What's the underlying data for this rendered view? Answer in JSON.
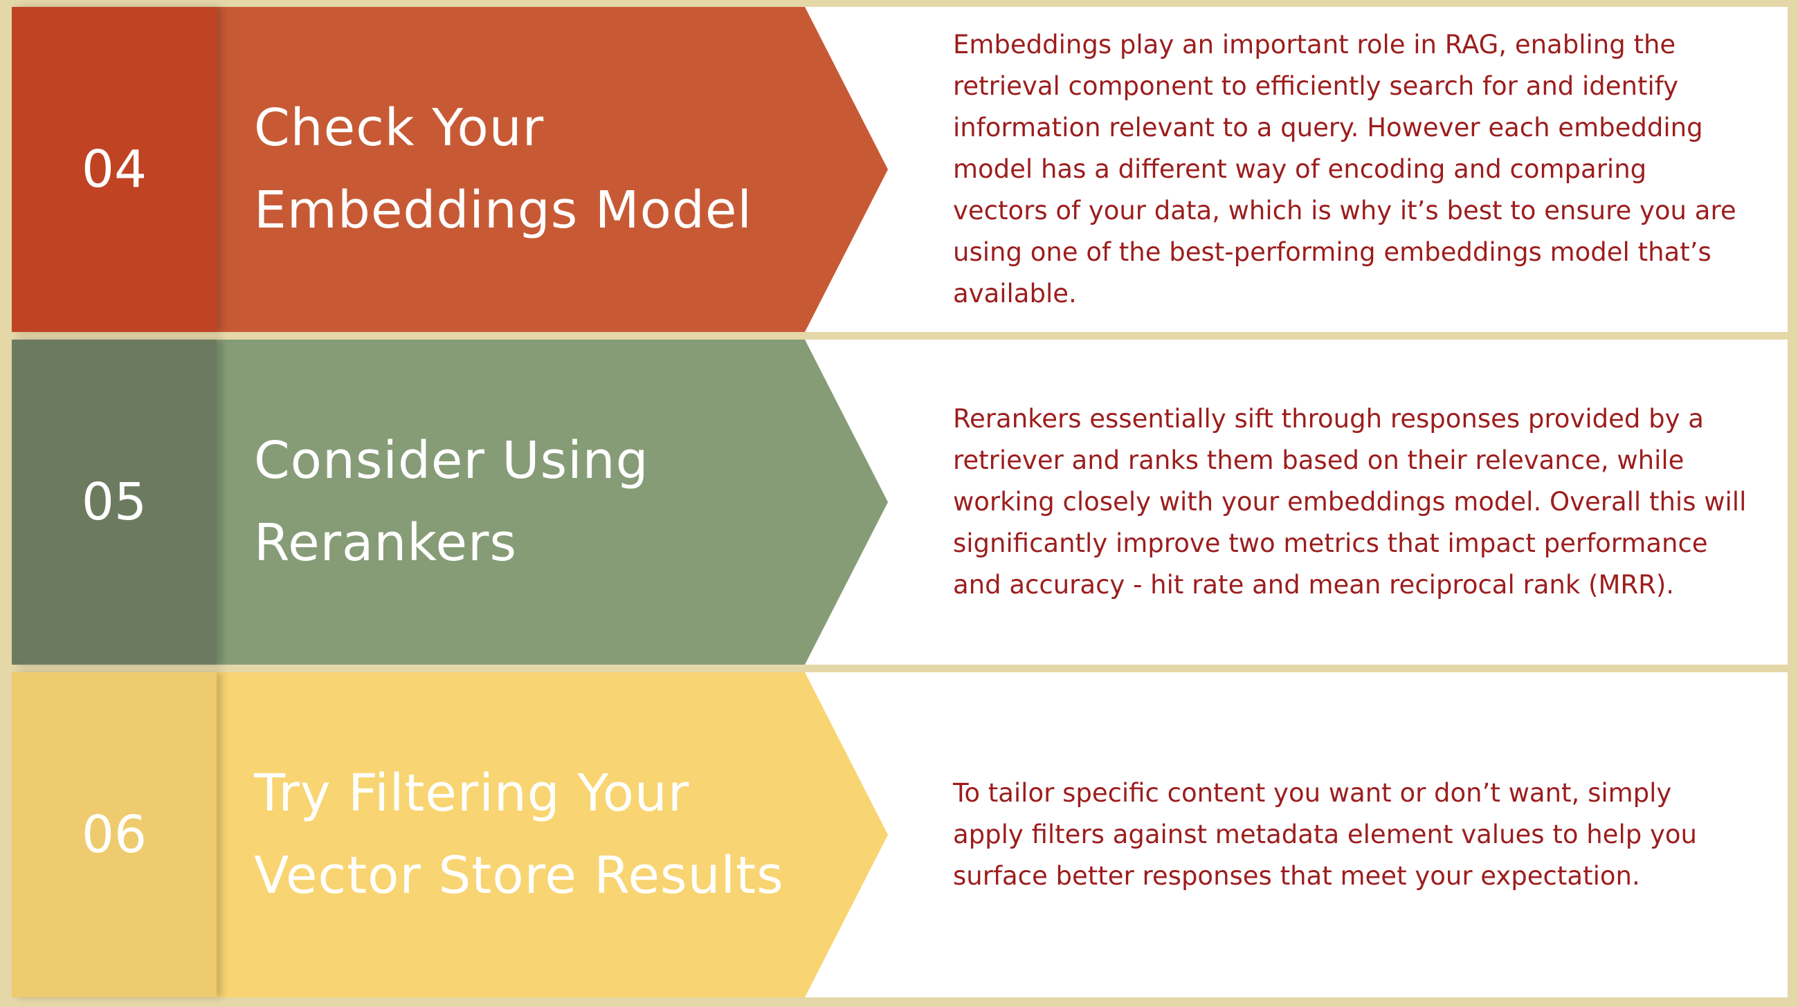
{
  "steps": [
    {
      "number": "04",
      "title_line1": "Check Your",
      "title_line2": "Embeddings Model",
      "description": "Embeddings play an important role in RAG, enabling the retrieval component to efficiently search for and identify information relevant to a query. However each embedding model has a different way of encoding and comparing vectors of your data, which is why it’s best to ensure you are using one of the best-performing embeddings model that’s available.",
      "color": "#c75a35",
      "number_block_color": "#c04424"
    },
    {
      "number": "05",
      "title_line1": "Consider Using",
      "title_line2": "Rerankers",
      "description": "Rerankers essentially sift through responses provided by a retriever and ranks them based on their relevance, while working closely with your embeddings model. Overall this will significantly improve two metrics that impact performance and accuracy - hit rate and mean reciprocal rank (MRR).",
      "color": "#869c77",
      "number_block_color": "#6c7b60"
    },
    {
      "number": "06",
      "title_line1": "Try Filtering Your",
      "title_line2": "Vector Store Results",
      "description": "To tailor specific content you want or don’t want, simply apply filters against metadata element values to help you surface better responses that meet your expectation.",
      "color": "#f8d572",
      "number_block_color": "#eecb6e"
    }
  ],
  "text_color": "#9c1d1d",
  "background_color": "#e4d7a8"
}
